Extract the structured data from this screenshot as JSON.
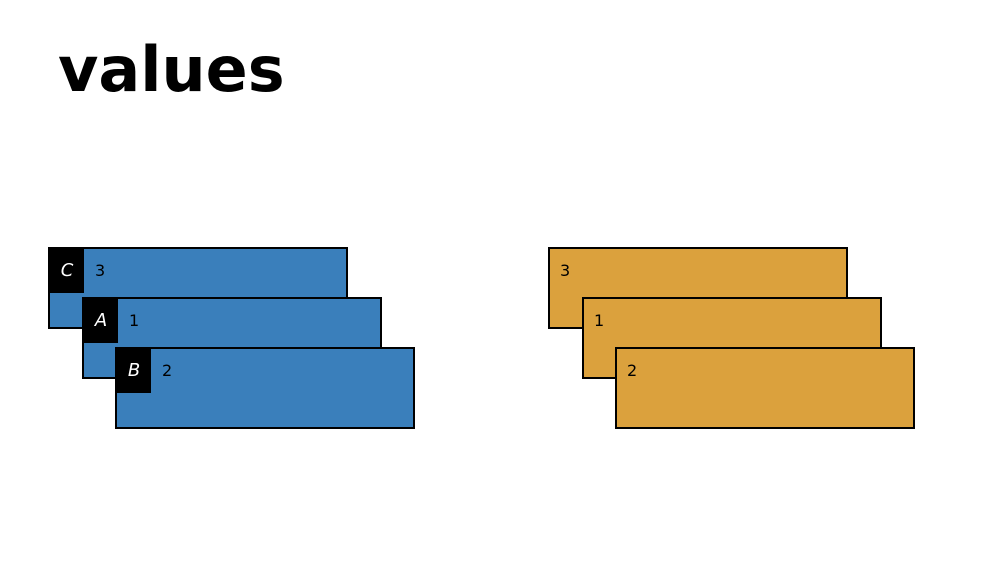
{
  "title": "values",
  "colors": {
    "dict_fill": "#3a7fbb",
    "values_fill": "#dba13d",
    "key_fill": "#000000",
    "key_text": "#ffffff"
  },
  "dict_items": [
    {
      "key": "C",
      "value": "3"
    },
    {
      "key": "A",
      "value": "1"
    },
    {
      "key": "B",
      "value": "2"
    }
  ],
  "values_items": [
    {
      "value": "3"
    },
    {
      "value": "1"
    },
    {
      "value": "2"
    }
  ]
}
